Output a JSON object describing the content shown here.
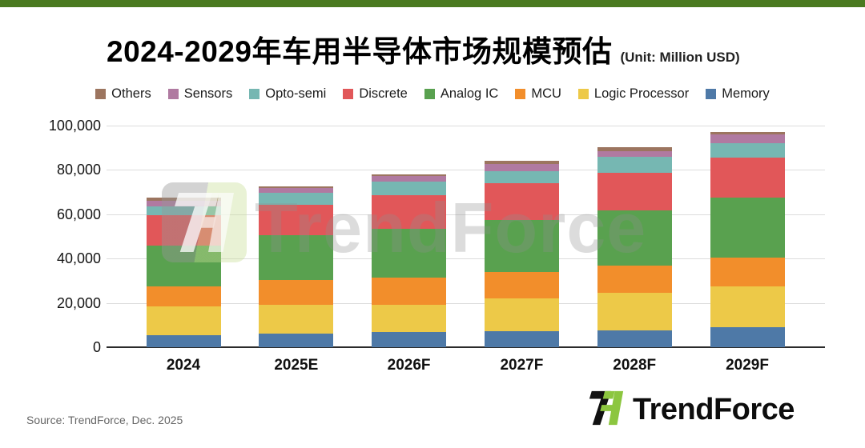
{
  "header": {
    "title": "2024-2029年车用半导体市场规模预估",
    "unit_label": "(Unit: Million USD)"
  },
  "chart_data": {
    "type": "bar",
    "stacked": true,
    "title": "2024-2029年车用半导体市场规模预估",
    "unit": "Million USD",
    "categories": [
      "2024",
      "2025E",
      "2026F",
      "2027F",
      "2028F",
      "2029F"
    ],
    "series": [
      {
        "name": "Memory",
        "color": "#4e79a7",
        "values": [
          5500,
          6200,
          6800,
          7100,
          7500,
          9000
        ]
      },
      {
        "name": "Logic Processor",
        "color": "#edc948",
        "values": [
          13000,
          12900,
          12200,
          15000,
          17200,
          18600
        ]
      },
      {
        "name": "MCU",
        "color": "#f28e2b",
        "values": [
          8800,
          11300,
          12500,
          11800,
          12000,
          12800
        ]
      },
      {
        "name": "Analog IC",
        "color": "#59a14f",
        "values": [
          18700,
          20300,
          22100,
          23600,
          25200,
          27100
        ]
      },
      {
        "name": "Discrete",
        "color": "#e15759",
        "values": [
          13500,
          13700,
          15100,
          16400,
          16800,
          18000
        ]
      },
      {
        "name": "Opto-semi",
        "color": "#76b7b2",
        "values": [
          4000,
          5200,
          6000,
          5500,
          7200,
          6400
        ]
      },
      {
        "name": "Sensors",
        "color": "#b07aa1",
        "values": [
          2500,
          2200,
          2700,
          3200,
          2700,
          4100
        ]
      },
      {
        "name": "Others",
        "color": "#9c755f",
        "values": [
          1500,
          800,
          500,
          1400,
          1500,
          1000
        ]
      }
    ],
    "totals": [
      67500,
      72600,
      77900,
      84000,
      90100,
      97000
    ],
    "xlabel": "",
    "ylabel": "",
    "ylim": [
      0,
      100000
    ],
    "ytick_step": 20000,
    "ytick_labels": [
      "0",
      "20,000",
      "40,000",
      "60,000",
      "80,000",
      "100,000"
    ],
    "grid": true,
    "legend_position": "top",
    "legend_order": [
      "Others",
      "Sensors",
      "Opto-semi",
      "Discrete",
      "Analog IC",
      "MCU",
      "Logic Processor",
      "Memory"
    ]
  },
  "watermark": {
    "text": "TrendForce"
  },
  "footer": {
    "source": "Source: TrendForce, Dec.  2025",
    "brand": "TrendForce"
  },
  "colors": {
    "top_bar_green": "#4a7a20",
    "brand_logo_green": "#8cc63f",
    "brand_logo_black": "#111111",
    "gridline": "#dcdcdc",
    "axis_line": "#2b2b2b"
  }
}
